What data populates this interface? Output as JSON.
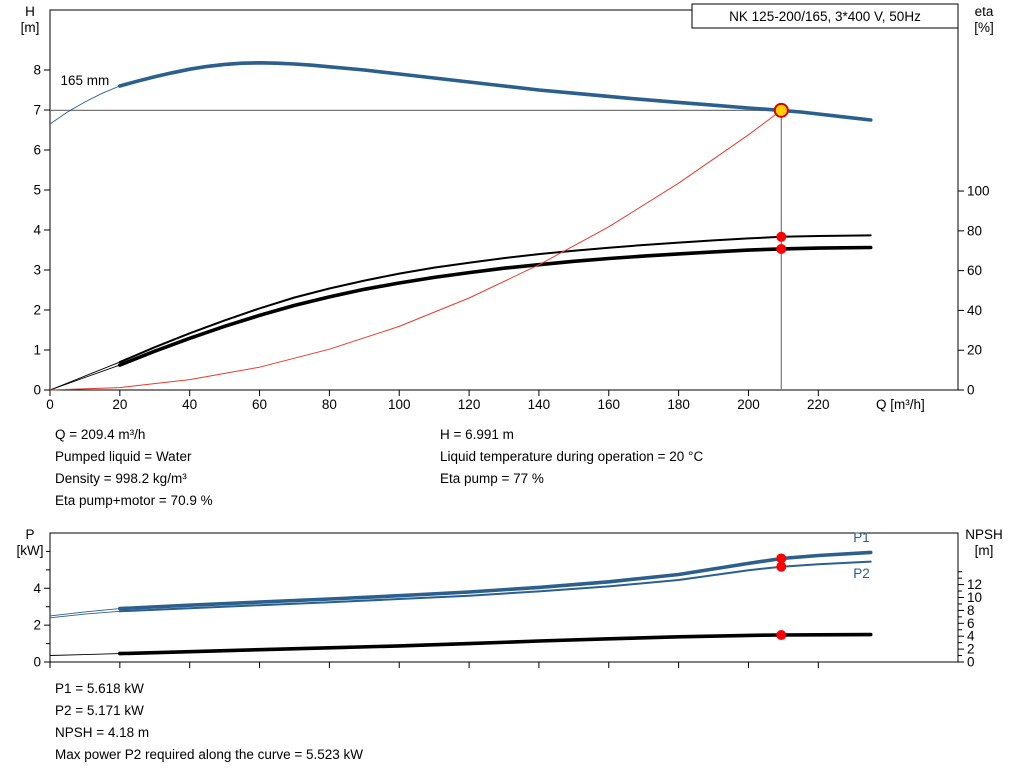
{
  "colors": {
    "curve_blue": "#2b5f8e",
    "curve_black": "#000000",
    "system_red": "#e63b2e",
    "dot_red": "#ff0000",
    "duty_fill": "#ffd200",
    "duty_stroke": "#dd0000",
    "guide_gray": "#787878"
  },
  "info_top": {
    "left": [
      "Q = 209.4 m³/h",
      "Pumped liquid = Water",
      "Density = 998.2 kg/m³",
      "Eta pump+motor = 70.9 %"
    ],
    "right": [
      "H = 6.991 m",
      "Liquid temperature during operation = 20 °C",
      "Eta pump = 77 %"
    ]
  },
  "info_bottom": [
    "P1 = 5.618 kW",
    "P2 = 5.171 kW",
    "NPSH = 4.18 m",
    "Max power P2 required along the curve = 5.523 kW"
  ],
  "chart_data": [
    {
      "name": "hq-eta-chart",
      "type": "line",
      "title": "NK 125-200/165, 3*400 V, 50Hz",
      "x_axis": {
        "label": "Q [m³/h]",
        "range": [
          0,
          260
        ],
        "ticks": [
          0,
          20,
          40,
          60,
          80,
          100,
          120,
          140,
          160,
          180,
          200,
          220
        ],
        "tick_labels": true
      },
      "y_left": {
        "label": [
          "H",
          "[m]"
        ],
        "range": [
          0,
          9.5
        ],
        "ticks": [
          0,
          1,
          2,
          3,
          4,
          5,
          6,
          7,
          8
        ]
      },
      "y_right": {
        "label": [
          "eta",
          "[%]"
        ],
        "range": [
          0,
          191
        ],
        "ticks": [
          0,
          20,
          40,
          60,
          80,
          100
        ]
      },
      "duty_point": {
        "q": 209.4,
        "h": 6.991
      },
      "series": [
        {
          "name": "head-curve",
          "axis": "left",
          "color": "blue",
          "width": 3.6,
          "thin_until": 20,
          "points": [
            [
              0,
              6.65
            ],
            [
              5,
              6.95
            ],
            [
              10,
              7.2
            ],
            [
              15,
              7.42
            ],
            [
              20,
              7.6
            ],
            [
              25,
              7.72
            ],
            [
              30,
              7.83
            ],
            [
              35,
              7.93
            ],
            [
              40,
              8.02
            ],
            [
              45,
              8.09
            ],
            [
              50,
              8.14
            ],
            [
              55,
              8.17
            ],
            [
              60,
              8.18
            ],
            [
              65,
              8.17
            ],
            [
              70,
              8.15
            ],
            [
              75,
              8.12
            ],
            [
              80,
              8.08
            ],
            [
              90,
              8.0
            ],
            [
              100,
              7.9
            ],
            [
              110,
              7.8
            ],
            [
              120,
              7.7
            ],
            [
              130,
              7.6
            ],
            [
              140,
              7.5
            ],
            [
              150,
              7.42
            ],
            [
              160,
              7.34
            ],
            [
              170,
              7.26
            ],
            [
              180,
              7.19
            ],
            [
              190,
              7.12
            ],
            [
              200,
              7.05
            ],
            [
              209.4,
              6.991
            ],
            [
              215,
              6.95
            ],
            [
              220,
              6.9
            ],
            [
              227,
              6.83
            ],
            [
              235,
              6.75
            ]
          ]
        },
        {
          "name": "eta-pump-curve",
          "axis": "right",
          "color": "black",
          "width": 2,
          "thin_until": 20,
          "points": [
            [
              0,
              0
            ],
            [
              10,
              7
            ],
            [
              20,
              14
            ],
            [
              30,
              21.5
            ],
            [
              40,
              28.5
            ],
            [
              50,
              35
            ],
            [
              60,
              41
            ],
            [
              70,
              46.5
            ],
            [
              80,
              51
            ],
            [
              90,
              55
            ],
            [
              100,
              58.5
            ],
            [
              110,
              61.5
            ],
            [
              120,
              64
            ],
            [
              130,
              66.3
            ],
            [
              140,
              68.3
            ],
            [
              150,
              70
            ],
            [
              160,
              71.5
            ],
            [
              170,
              72.9
            ],
            [
              180,
              74.1
            ],
            [
              190,
              75.2
            ],
            [
              200,
              76.2
            ],
            [
              209.4,
              77
            ],
            [
              220,
              77.4
            ],
            [
              235,
              77.7
            ]
          ]
        },
        {
          "name": "eta-pump-motor-curve",
          "axis": "right",
          "color": "black",
          "width": 3.6,
          "thin_until": 20,
          "points": [
            [
              0,
              0
            ],
            [
              10,
              6.3
            ],
            [
              20,
              12.5
            ],
            [
              30,
              19.5
            ],
            [
              40,
              26
            ],
            [
              50,
              32
            ],
            [
              60,
              37.5
            ],
            [
              70,
              42.5
            ],
            [
              80,
              46.8
            ],
            [
              90,
              50.6
            ],
            [
              100,
              53.8
            ],
            [
              110,
              56.6
            ],
            [
              120,
              59
            ],
            [
              130,
              61.2
            ],
            [
              140,
              63
            ],
            [
              150,
              64.7
            ],
            [
              160,
              66.1
            ],
            [
              170,
              67.3
            ],
            [
              180,
              68.4
            ],
            [
              190,
              69.4
            ],
            [
              200,
              70.3
            ],
            [
              209.4,
              70.9
            ],
            [
              220,
              71.3
            ],
            [
              235,
              71.6
            ]
          ]
        },
        {
          "name": "system-curve",
          "axis": "left",
          "color": "red",
          "width": 1,
          "points": [
            [
              0,
              0
            ],
            [
              20,
              0.06
            ],
            [
              40,
              0.26
            ],
            [
              60,
              0.57
            ],
            [
              80,
              1.02
            ],
            [
              100,
              1.59
            ],
            [
              120,
              2.3
            ],
            [
              140,
              3.13
            ],
            [
              160,
              4.08
            ],
            [
              180,
              5.17
            ],
            [
              200,
              6.38
            ],
            [
              209.4,
              6.991
            ]
          ]
        }
      ],
      "annotations": [
        {
          "text": "165 mm",
          "axis": "left",
          "x": 3,
          "y": 7.62
        }
      ],
      "markers": [
        {
          "type": "duty",
          "axis": "left",
          "x": 209.4,
          "y": 6.991
        },
        {
          "type": "dot",
          "axis": "right",
          "x": 209.4,
          "y": 77
        },
        {
          "type": "dot",
          "axis": "right",
          "x": 209.4,
          "y": 70.9
        }
      ]
    },
    {
      "name": "power-npsh-chart",
      "type": "line",
      "x_axis": {
        "label": "",
        "range": [
          0,
          260
        ],
        "ticks": [
          0,
          20,
          40,
          60,
          80,
          100,
          120,
          140,
          160,
          180,
          200,
          220
        ],
        "tick_labels": false
      },
      "y_left": {
        "label": [
          "P",
          "[kW]"
        ],
        "range": [
          0,
          7
        ],
        "ticks": [
          0,
          2,
          4
        ],
        "minor_ticks": [
          1,
          3,
          5,
          6
        ]
      },
      "y_right": {
        "label": [
          "NPSH",
          "[m]"
        ],
        "range": [
          0,
          20
        ],
        "ticks": [
          0,
          2,
          4,
          6,
          8,
          10,
          12
        ],
        "minor_ticks": [
          1,
          3,
          5,
          7,
          9,
          11,
          13,
          14
        ]
      },
      "series": [
        {
          "name": "p1-curve",
          "label": "P1",
          "label_pos": [
            230,
            6.5
          ],
          "axis": "left",
          "color": "blue",
          "width": 3.6,
          "thin_until": 20,
          "points": [
            [
              0,
              2.5
            ],
            [
              10,
              2.72
            ],
            [
              20,
              2.9
            ],
            [
              40,
              3.08
            ],
            [
              60,
              3.25
            ],
            [
              80,
              3.42
            ],
            [
              100,
              3.6
            ],
            [
              120,
              3.8
            ],
            [
              140,
              4.05
            ],
            [
              160,
              4.35
            ],
            [
              180,
              4.75
            ],
            [
              200,
              5.35
            ],
            [
              209.4,
              5.618
            ],
            [
              220,
              5.78
            ],
            [
              235,
              5.95
            ]
          ]
        },
        {
          "name": "p2-curve",
          "label": "P2",
          "label_pos": [
            230,
            4.55
          ],
          "axis": "left",
          "color": "blue",
          "width": 2,
          "thin_until": 20,
          "points": [
            [
              0,
              2.4
            ],
            [
              10,
              2.6
            ],
            [
              20,
              2.75
            ],
            [
              40,
              2.92
            ],
            [
              60,
              3.08
            ],
            [
              80,
              3.24
            ],
            [
              100,
              3.42
            ],
            [
              120,
              3.6
            ],
            [
              140,
              3.83
            ],
            [
              160,
              4.1
            ],
            [
              180,
              4.45
            ],
            [
              200,
              4.98
            ],
            [
              209.4,
              5.171
            ],
            [
              220,
              5.3
            ],
            [
              235,
              5.45
            ]
          ]
        },
        {
          "name": "npsh-curve",
          "axis": "right",
          "color": "black",
          "width": 3.6,
          "thin_until": 20,
          "points": [
            [
              0,
              1.0
            ],
            [
              10,
              1.15
            ],
            [
              20,
              1.3
            ],
            [
              40,
              1.6
            ],
            [
              60,
              1.9
            ],
            [
              80,
              2.2
            ],
            [
              100,
              2.5
            ],
            [
              120,
              2.85
            ],
            [
              140,
              3.25
            ],
            [
              160,
              3.6
            ],
            [
              180,
              3.9
            ],
            [
              200,
              4.12
            ],
            [
              209.4,
              4.18
            ],
            [
              220,
              4.22
            ],
            [
              235,
              4.25
            ]
          ]
        }
      ],
      "markers": [
        {
          "type": "dot",
          "axis": "left",
          "x": 209.4,
          "y": 5.618
        },
        {
          "type": "dot",
          "axis": "left",
          "x": 209.4,
          "y": 5.171
        },
        {
          "type": "dot",
          "axis": "right",
          "x": 209.4,
          "y": 4.18
        }
      ]
    }
  ]
}
